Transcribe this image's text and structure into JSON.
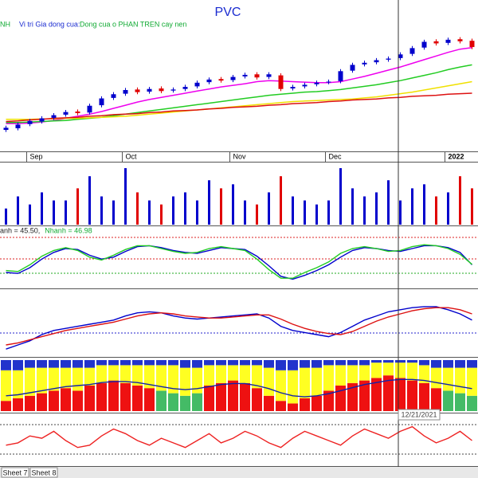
{
  "chart_data": [
    {
      "type": "candlestick",
      "title": "PVC",
      "subtitle": "NH",
      "annotation_label": "Vi tri Gia dong cua:",
      "annotation_text": "Dong cua o PHAN TREN cay nen",
      "categories": [
        null,
        null,
        "Sep",
        null,
        null,
        null,
        null,
        null,
        null,
        null,
        "Oct",
        null,
        null,
        null,
        null,
        null,
        null,
        null,
        null,
        "Nov",
        null,
        null,
        null,
        null,
        null,
        null,
        null,
        "Dec",
        null,
        null,
        null,
        null,
        null,
        null,
        null,
        null,
        null,
        "2022",
        null,
        null
      ],
      "open": [
        15.8,
        16.1,
        16.9,
        17.4,
        18.1,
        18.7,
        19.3,
        19.1,
        20.5,
        21.9,
        22.7,
        23.5,
        23.1,
        23.7,
        23.3,
        23.6,
        24.1,
        24.9,
        25.5,
        25.3,
        26.0,
        26.4,
        25.9,
        26.2,
        23.7,
        24.1,
        24.5,
        24.9,
        25.1,
        27.1,
        28.3,
        28.7,
        29.2,
        29.5,
        30.3,
        31.5,
        32.7,
        32.4,
        33.1,
        32.8
      ],
      "high": [
        16.6,
        17.2,
        17.9,
        18.4,
        19.0,
        19.6,
        19.7,
        20.8,
        22.2,
        23.0,
        23.8,
        23.9,
        24.0,
        24.1,
        23.9,
        24.4,
        25.2,
        25.8,
        25.9,
        26.3,
        26.7,
        26.8,
        26.8,
        26.6,
        24.4,
        24.8,
        25.2,
        25.4,
        27.4,
        28.6,
        29.0,
        29.5,
        29.8,
        30.6,
        31.8,
        33.0,
        33.1,
        33.4,
        33.5,
        33.2
      ],
      "low": [
        15.4,
        15.7,
        16.5,
        17.0,
        17.7,
        18.3,
        18.6,
        18.7,
        20.1,
        21.5,
        22.3,
        22.6,
        22.7,
        22.8,
        22.9,
        23.2,
        23.7,
        24.5,
        24.8,
        24.9,
        25.6,
        25.4,
        25.5,
        23.2,
        23.3,
        23.7,
        24.1,
        24.5,
        24.7,
        26.7,
        27.9,
        28.3,
        28.8,
        29.1,
        29.9,
        31.1,
        31.9,
        32.0,
        32.3,
        31.2
      ],
      "close": [
        16.2,
        16.8,
        17.5,
        18.0,
        18.6,
        19.2,
        19.0,
        20.4,
        21.8,
        22.6,
        23.4,
        23.0,
        23.6,
        23.2,
        23.5,
        24.0,
        24.8,
        25.4,
        25.2,
        25.9,
        26.3,
        25.8,
        26.4,
        23.6,
        24.0,
        24.4,
        24.8,
        25.0,
        27.0,
        28.2,
        28.6,
        29.1,
        29.4,
        30.2,
        31.4,
        32.6,
        32.3,
        33.0,
        32.7,
        31.6
      ],
      "up_color": "#0000cc",
      "down_color": "#e00000",
      "ylim": [
        12,
        34.5
      ],
      "lines": [
        {
          "color": "#ee00ee",
          "values": [
            17.0,
            17.0,
            17.1,
            17.3,
            17.6,
            18.0,
            18.4,
            18.8,
            19.3,
            19.9,
            20.5,
            21.1,
            21.6,
            22.0,
            22.4,
            22.8,
            23.2,
            23.6,
            24.0,
            24.3,
            24.6,
            25.0,
            25.2,
            25.1,
            25.0,
            24.9,
            24.8,
            24.8,
            25.0,
            25.5,
            26.0,
            26.6,
            27.2,
            27.8,
            28.5,
            29.2,
            29.9,
            30.6,
            31.2,
            31.5
          ]
        },
        {
          "color": "#22cc22",
          "values": [
            17.2,
            17.2,
            17.3,
            17.4,
            17.5,
            17.6,
            17.8,
            18.0,
            18.2,
            18.5,
            18.8,
            19.1,
            19.4,
            19.7,
            20.0,
            20.3,
            20.6,
            20.9,
            21.2,
            21.5,
            21.8,
            22.1,
            22.4,
            22.6,
            22.8,
            23.0,
            23.1,
            23.3,
            23.5,
            23.8,
            24.1,
            24.4,
            24.8,
            25.2,
            25.7,
            26.2,
            26.7,
            27.3,
            27.8,
            28.2
          ]
        },
        {
          "color": "#f0e000",
          "values": [
            17.8,
            17.8,
            17.8,
            17.9,
            17.9,
            18.0,
            18.0,
            18.1,
            18.2,
            18.3,
            18.4,
            18.6,
            18.8,
            19.0,
            19.2,
            19.4,
            19.6,
            19.8,
            20.0,
            20.2,
            20.4,
            20.6,
            20.8,
            21.0,
            21.2,
            21.3,
            21.4,
            21.5,
            21.6,
            21.7,
            21.9,
            22.1,
            22.4,
            22.7,
            23.0,
            23.4,
            23.8,
            24.2,
            24.6,
            25.0
          ]
        },
        {
          "color": "#dd1111",
          "values": [
            17.4,
            17.5,
            17.7,
            17.8,
            18.0,
            18.1,
            18.2,
            18.4,
            18.5,
            18.7,
            18.8,
            18.9,
            19.1,
            19.2,
            19.4,
            19.5,
            19.6,
            19.8,
            19.9,
            20.1,
            20.2,
            20.3,
            20.5,
            20.6,
            20.8,
            20.9,
            21.0,
            21.2,
            21.3,
            21.5,
            21.6,
            21.7,
            21.9,
            22.0,
            22.2,
            22.3,
            22.4,
            22.6,
            22.7,
            22.8
          ]
        }
      ],
      "crosshair_date": "12/21/2021"
    },
    {
      "type": "bar",
      "ylim": [
        0,
        75
      ],
      "values": [
        20,
        35,
        25,
        40,
        30,
        30,
        45,
        60,
        35,
        30,
        70,
        40,
        30,
        25,
        35,
        40,
        30,
        55,
        45,
        50,
        30,
        25,
        40,
        60,
        35,
        30,
        25,
        30,
        70,
        45,
        35,
        40,
        55,
        30,
        45,
        50,
        35,
        40,
        60,
        45
      ]
    },
    {
      "type": "line",
      "ylim": [
        0,
        100
      ],
      "series": [
        {
          "name": "anh = 45.50,",
          "color": "#0000cc",
          "values": [
            30,
            28,
            40,
            58,
            72,
            80,
            78,
            66,
            58,
            62,
            74,
            84,
            86,
            82,
            76,
            72,
            70,
            76,
            82,
            80,
            78,
            64,
            44,
            22,
            16,
            24,
            34,
            46,
            62,
            76,
            82,
            80,
            76,
            74,
            80,
            86,
            86,
            82,
            72,
            46
          ]
        },
        {
          "name": "Nhanh = 46.98",
          "color": "#22cc22",
          "values": [
            34,
            32,
            46,
            64,
            76,
            82,
            76,
            62,
            56,
            66,
            78,
            86,
            86,
            80,
            74,
            70,
            72,
            80,
            84,
            80,
            76,
            58,
            36,
            18,
            18,
            30,
            40,
            52,
            70,
            80,
            84,
            80,
            74,
            76,
            84,
            88,
            86,
            80,
            68,
            47
          ]
        }
      ]
    },
    {
      "type": "line",
      "ylim": [
        -1.5,
        1.5
      ],
      "series": [
        {
          "color": "#0000cc",
          "values": [
            -1.2,
            -1.0,
            -0.8,
            -0.5,
            -0.3,
            -0.2,
            -0.1,
            0,
            0.1,
            0.2,
            0.4,
            0.55,
            0.6,
            0.55,
            0.4,
            0.3,
            0.25,
            0.3,
            0.35,
            0.4,
            0.45,
            0.5,
            0.3,
            -0.1,
            -0.3,
            -0.4,
            -0.5,
            -0.6,
            -0.4,
            -0.1,
            0.2,
            0.4,
            0.6,
            0.7,
            0.8,
            0.85,
            0.85,
            0.7,
            0.5,
            0.2
          ]
        },
        {
          "color": "#dd1111",
          "values": [
            -1.0,
            -0.9,
            -0.75,
            -0.6,
            -0.45,
            -0.3,
            -0.2,
            -0.1,
            0,
            0.1,
            0.25,
            0.4,
            0.5,
            0.55,
            0.5,
            0.4,
            0.35,
            0.3,
            0.3,
            0.35,
            0.4,
            0.45,
            0.45,
            0.25,
            0,
            -0.2,
            -0.35,
            -0.45,
            -0.5,
            -0.35,
            -0.1,
            0.15,
            0.35,
            0.5,
            0.65,
            0.75,
            0.8,
            0.8,
            0.7,
            0.5
          ]
        }
      ]
    },
    {
      "type": "stacked_bar",
      "ylim": [
        0,
        100
      ],
      "series": [
        {
          "color": "#ee1111",
          "values": [
            20,
            25,
            30,
            35,
            40,
            45,
            40,
            50,
            55,
            60,
            55,
            50,
            45,
            0,
            0,
            0,
            0,
            50,
            55,
            60,
            55,
            45,
            30,
            20,
            15,
            25,
            30,
            40,
            50,
            55,
            60,
            65,
            70,
            65,
            60,
            55,
            45,
            0,
            0,
            0
          ]
        },
        {
          "color": "#44bb66",
          "values": [
            0,
            0,
            0,
            0,
            0,
            0,
            0,
            0,
            0,
            0,
            0,
            0,
            0,
            40,
            35,
            30,
            35,
            0,
            0,
            0,
            0,
            0,
            0,
            0,
            0,
            0,
            0,
            0,
            0,
            0,
            0,
            0,
            0,
            0,
            0,
            0,
            0,
            40,
            35,
            30
          ]
        },
        {
          "color": "#ffff22",
          "values": [
            60,
            55,
            55,
            50,
            45,
            40,
            45,
            35,
            35,
            30,
            35,
            40,
            45,
            50,
            55,
            55,
            50,
            40,
            35,
            30,
            35,
            45,
            55,
            60,
            65,
            60,
            55,
            50,
            40,
            35,
            30,
            30,
            25,
            30,
            35,
            35,
            40,
            45,
            50,
            55
          ]
        },
        {
          "color": "#2233cc",
          "values": [
            20,
            20,
            15,
            15,
            15,
            15,
            15,
            15,
            10,
            10,
            10,
            10,
            10,
            10,
            10,
            15,
            15,
            10,
            10,
            10,
            10,
            10,
            15,
            20,
            20,
            15,
            15,
            10,
            10,
            10,
            10,
            5,
            5,
            5,
            5,
            10,
            15,
            15,
            15,
            15
          ]
        }
      ],
      "line": {
        "color": "#1122aa",
        "values": [
          30,
          32,
          36,
          40,
          44,
          48,
          50,
          52,
          56,
          58,
          58,
          56,
          52,
          48,
          44,
          42,
          44,
          48,
          52,
          54,
          54,
          50,
          44,
          36,
          30,
          28,
          30,
          34,
          40,
          46,
          52,
          56,
          60,
          62,
          62,
          60,
          56,
          52,
          48,
          44
        ]
      }
    },
    {
      "type": "line",
      "ylim": [
        0,
        100
      ],
      "series": [
        {
          "color": "#ee2222",
          "values": [
            40,
            45,
            60,
            55,
            70,
            50,
            35,
            40,
            60,
            75,
            65,
            50,
            40,
            55,
            45,
            35,
            50,
            65,
            45,
            55,
            70,
            60,
            45,
            35,
            55,
            70,
            60,
            50,
            40,
            60,
            75,
            65,
            55,
            70,
            80,
            60,
            45,
            55,
            70,
            50
          ]
        }
      ]
    }
  ],
  "tabs": [
    "Sheet 7",
    "Sheet 8"
  ]
}
